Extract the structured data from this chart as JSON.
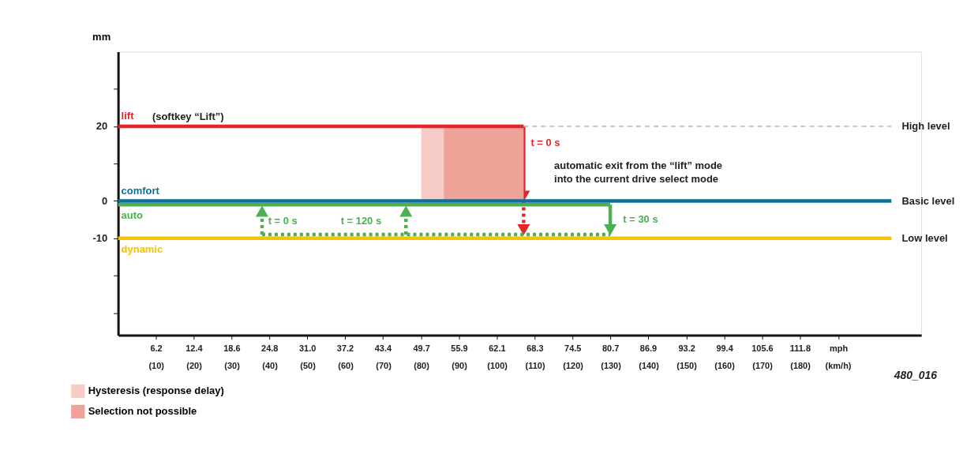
{
  "chart_data": {
    "type": "line",
    "ylabel": "mm",
    "xlim": [
      0,
      131.7
    ],
    "ylim": [
      -36,
      40
    ],
    "xticks": [
      6.2,
      12.4,
      18.6,
      24.8,
      {
        "value": 31.0,
        "label": "31.0"
      },
      37.2,
      43.4,
      49.7,
      55.9,
      62.1,
      68.3,
      74.5,
      80.7,
      86.9,
      93.2,
      99.4,
      105.6,
      111.8,
      {
        "value": 118.1,
        "label": "mph"
      }
    ],
    "x2lim": [
      0,
      212
    ],
    "x2ticks": [
      {
        "value": 10,
        "label": "(10)"
      },
      {
        "value": 20,
        "label": "(20)"
      },
      {
        "value": 30,
        "label": "(30)"
      },
      {
        "value": 40,
        "label": "(40)"
      },
      {
        "value": 50,
        "label": "(50)"
      },
      {
        "value": 60,
        "label": "(60)"
      },
      {
        "value": 70,
        "label": "(70)"
      },
      {
        "value": 80,
        "label": "(80)"
      },
      {
        "value": 90,
        "label": "(90)"
      },
      {
        "value": 100,
        "label": "(100)"
      },
      {
        "value": 110,
        "label": "(110)"
      },
      {
        "value": 120,
        "label": "(120)"
      },
      {
        "value": 130,
        "label": "(130)"
      },
      {
        "value": 140,
        "label": "(140)"
      },
      {
        "value": 150,
        "label": "(150)"
      },
      {
        "value": 160,
        "label": "(160)"
      },
      {
        "value": 170,
        "label": "(170)"
      },
      {
        "value": 180,
        "label": "(180)"
      },
      {
        "value": 190,
        "label": "(km/h)"
      }
    ],
    "yticks": [
      {
        "value": 30,
        "label": null
      },
      20,
      {
        "value": 10,
        "label": null
      },
      0,
      -10,
      {
        "value": -20,
        "label": null
      },
      {
        "value": -30,
        "label": null
      }
    ],
    "grid": false,
    "legend": "bottom left",
    "series": [
      {
        "name": "Hysteresis (response delay)",
        "type": "area",
        "color": "#f7cbc6",
        "x": [
          49.7,
          53.4
        ],
        "values": [
          20,
          20
        ]
      },
      {
        "name": "Selection not possible",
        "type": "area",
        "color": "#efa398",
        "x": [
          53.4,
          66.5
        ],
        "values": [
          20,
          20
        ]
      },
      {
        "color": "#b5b5b5",
        "line_style": "dashed",
        "x": [
          66.5,
          126.8
        ],
        "values": [
          20,
          20
        ]
      },
      {
        "name": "dynamic",
        "color": "#f5c400",
        "x": [
          0,
          126.8
        ],
        "values": [
          -10,
          -10
        ]
      },
      {
        "color": "#4caf50",
        "line_style": "dotted",
        "x": [
          23.6,
          80.7
        ],
        "values": [
          -9,
          -9
        ]
      },
      {
        "name": "auto",
        "color": "#4caf50",
        "x": [
          0,
          80.7
        ],
        "values": [
          -1,
          -1
        ]
      },
      {
        "name": "comfort",
        "color": "#106e99",
        "x": [
          0,
          126.8
        ],
        "values": [
          0,
          0
        ]
      },
      {
        "name": "lift",
        "color": "#e3262b",
        "x": [
          0,
          66.5
        ],
        "values": [
          20,
          20
        ]
      }
    ],
    "annotations": [
      "(softkey “Lift”)",
      "High level",
      "Basic level",
      "Low level",
      {
        "text": "t = 0 s",
        "x": 66.5,
        "y": 15.5
      },
      "automatic exit from the “lift” mode\ninto the current drive select mode",
      "t = 0 s",
      "t = 120 s",
      "t = 30 s",
      "480_016"
    ]
  }
}
